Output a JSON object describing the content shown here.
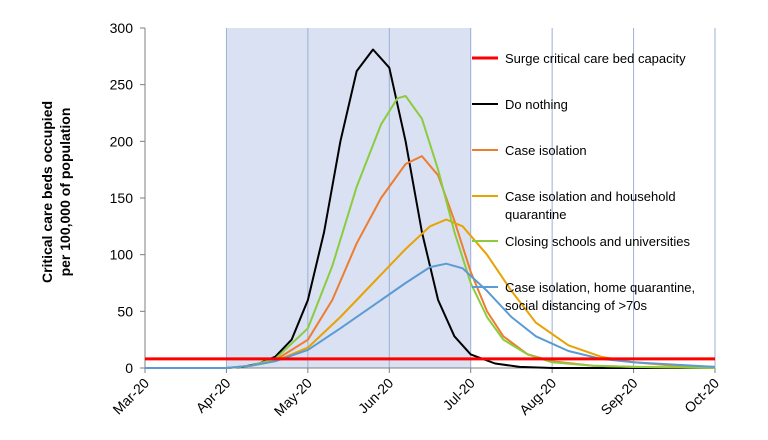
{
  "chart_data": {
    "type": "line",
    "ylabel_lines": [
      "Critical care beds occupied",
      "per 100,000 of population"
    ],
    "x_ticks": [
      "Mar-20",
      "Apr-20",
      "May-20",
      "Jun-20",
      "Jul-20",
      "Aug-20",
      "Sep-20",
      "Oct-20"
    ],
    "y_ticks": [
      0,
      50,
      100,
      150,
      200,
      250,
      300
    ],
    "ylim": [
      0,
      300
    ],
    "xlim": [
      0,
      7
    ],
    "shaded_range": [
      1,
      4
    ],
    "shaded_color": "#d9e1f2",
    "grid": "vertical",
    "legend_position": "right",
    "reference_line": {
      "name": "Surge critical care bed capacity",
      "value": 8,
      "color": "#ff0000"
    },
    "series": [
      {
        "name": "Do nothing",
        "color": "#000000",
        "points": [
          [
            0,
            0
          ],
          [
            1,
            0
          ],
          [
            1.2,
            1
          ],
          [
            1.4,
            4
          ],
          [
            1.6,
            10
          ],
          [
            1.8,
            25
          ],
          [
            2.0,
            60
          ],
          [
            2.2,
            120
          ],
          [
            2.4,
            200
          ],
          [
            2.6,
            262
          ],
          [
            2.8,
            281
          ],
          [
            3.0,
            265
          ],
          [
            3.2,
            200
          ],
          [
            3.4,
            120
          ],
          [
            3.6,
            60
          ],
          [
            3.8,
            28
          ],
          [
            4.0,
            12
          ],
          [
            4.3,
            4
          ],
          [
            4.6,
            1
          ],
          [
            5.0,
            0
          ],
          [
            7,
            0
          ]
        ]
      },
      {
        "name": "Case isolation",
        "color": "#ed7d31",
        "points": [
          [
            0,
            0
          ],
          [
            1,
            0
          ],
          [
            1.3,
            2
          ],
          [
            1.6,
            7
          ],
          [
            2.0,
            25
          ],
          [
            2.3,
            60
          ],
          [
            2.6,
            110
          ],
          [
            2.9,
            150
          ],
          [
            3.2,
            180
          ],
          [
            3.4,
            187
          ],
          [
            3.6,
            170
          ],
          [
            3.8,
            130
          ],
          [
            4.0,
            85
          ],
          [
            4.2,
            50
          ],
          [
            4.4,
            28
          ],
          [
            4.7,
            12
          ],
          [
            5.0,
            6
          ],
          [
            5.5,
            2
          ],
          [
            6.0,
            1
          ],
          [
            7,
            0
          ]
        ]
      },
      {
        "name": "Case isolation and household quarantine",
        "color": "#e8a202",
        "points": [
          [
            0,
            0
          ],
          [
            1,
            0
          ],
          [
            1.3,
            2
          ],
          [
            1.6,
            6
          ],
          [
            2.0,
            18
          ],
          [
            2.4,
            45
          ],
          [
            2.8,
            75
          ],
          [
            3.2,
            105
          ],
          [
            3.5,
            125
          ],
          [
            3.7,
            131
          ],
          [
            3.9,
            125
          ],
          [
            4.2,
            100
          ],
          [
            4.5,
            68
          ],
          [
            4.8,
            40
          ],
          [
            5.2,
            20
          ],
          [
            5.6,
            10
          ],
          [
            6.0,
            5
          ],
          [
            6.5,
            2
          ],
          [
            7,
            1
          ]
        ]
      },
      {
        "name": "Closing schools and universities",
        "color": "#8bcc3e",
        "points": [
          [
            0,
            0
          ],
          [
            1,
            0
          ],
          [
            1.3,
            2
          ],
          [
            1.6,
            8
          ],
          [
            2.0,
            35
          ],
          [
            2.3,
            90
          ],
          [
            2.6,
            160
          ],
          [
            2.9,
            215
          ],
          [
            3.1,
            238
          ],
          [
            3.2,
            240
          ],
          [
            3.4,
            220
          ],
          [
            3.6,
            175
          ],
          [
            3.8,
            120
          ],
          [
            4.0,
            75
          ],
          [
            4.2,
            45
          ],
          [
            4.4,
            25
          ],
          [
            4.7,
            12
          ],
          [
            5.0,
            5
          ],
          [
            5.5,
            2
          ],
          [
            6.0,
            1
          ],
          [
            7,
            0
          ]
        ]
      },
      {
        "name": "Case isolation, home quarantine, social distancing of >70s",
        "color": "#5b9bd5",
        "points": [
          [
            0,
            0
          ],
          [
            1,
            0
          ],
          [
            1.3,
            2
          ],
          [
            1.6,
            6
          ],
          [
            2.0,
            16
          ],
          [
            2.4,
            35
          ],
          [
            2.8,
            55
          ],
          [
            3.2,
            75
          ],
          [
            3.5,
            89
          ],
          [
            3.7,
            92
          ],
          [
            3.9,
            88
          ],
          [
            4.2,
            68
          ],
          [
            4.5,
            45
          ],
          [
            4.8,
            28
          ],
          [
            5.2,
            15
          ],
          [
            5.6,
            8
          ],
          [
            6.0,
            5
          ],
          [
            6.5,
            3
          ],
          [
            7,
            1
          ]
        ]
      }
    ]
  }
}
